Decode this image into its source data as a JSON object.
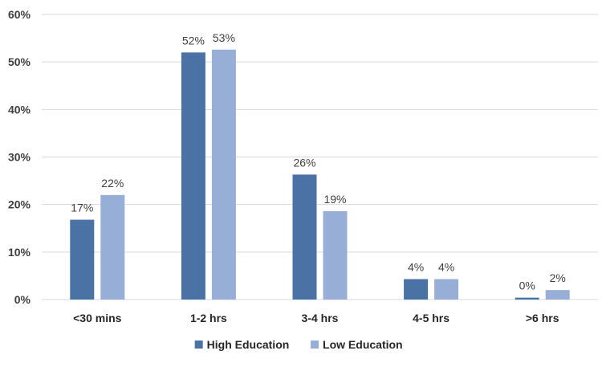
{
  "chart_data": {
    "type": "bar",
    "categories": [
      "<30 mins",
      "1-2 hrs",
      "3-4 hrs",
      "4-5 hrs",
      ">6 hrs"
    ],
    "series": [
      {
        "name": "High Education",
        "values": [
          16.8,
          52.0,
          26.3,
          4.3,
          0.4
        ],
        "labels": [
          "17%",
          "52%",
          "26%",
          "4%",
          "0%"
        ],
        "color": "#4a72a4"
      },
      {
        "name": "Low Education",
        "values": [
          22.0,
          52.6,
          18.6,
          4.3,
          2.0
        ],
        "labels": [
          "22%",
          "53%",
          "19%",
          "4%",
          "2%"
        ],
        "color": "#97aed6"
      }
    ],
    "y_ticks": [
      "0%",
      "10%",
      "20%",
      "30%",
      "40%",
      "50%",
      "60%"
    ],
    "ylim": [
      0,
      60
    ],
    "grid": true,
    "legend_position": "bottom",
    "gridline_color": "#d9d9d9"
  }
}
